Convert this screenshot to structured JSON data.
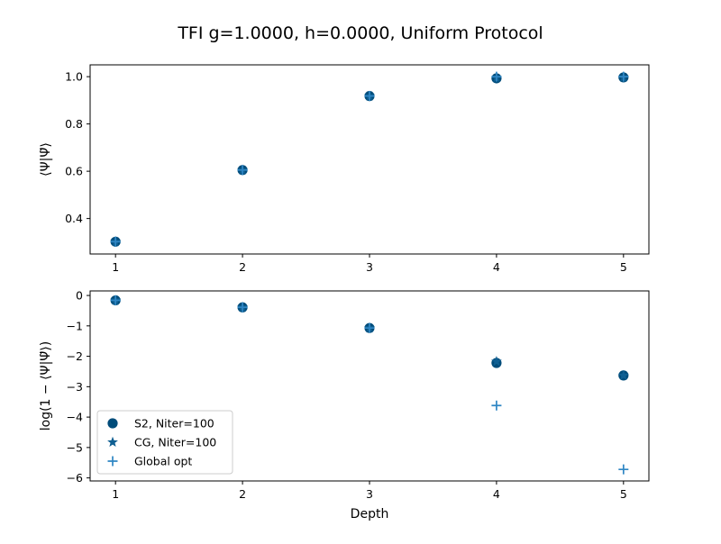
{
  "figure": {
    "title": "TFI g=1.0000, h=0.0000, Uniform Protocol"
  },
  "chart_data": [
    {
      "type": "scatter",
      "title": "",
      "xlabel": "",
      "ylabel": "⟨Ψ|Ψ̃⟩",
      "xlim": [
        0.8,
        5.2
      ],
      "ylim": [
        0.25,
        1.05
      ],
      "xticks": [
        1,
        2,
        3,
        4,
        5
      ],
      "yticks": [
        0.4,
        0.6,
        0.8,
        1.0
      ],
      "ytick_labels": [
        "0.4",
        "0.6",
        "0.8",
        "1.0"
      ],
      "series": [
        {
          "name": "S2, Niter=100",
          "marker": "circle",
          "color": "#004c7a",
          "x": [
            1,
            2,
            3,
            4,
            5
          ],
          "y": [
            0.302,
            0.605,
            0.918,
            0.993,
            0.997
          ]
        },
        {
          "name": "CG, Niter=100",
          "marker": "star",
          "color": "#0f5f92",
          "x": [
            1,
            2,
            3,
            4,
            5
          ],
          "y": [
            0.302,
            0.605,
            0.918,
            0.995,
            0.997
          ]
        },
        {
          "name": "Global opt",
          "marker": "plus",
          "color": "#2f86c4",
          "x": [
            1,
            2,
            3,
            4,
            5
          ],
          "y": [
            0.302,
            0.605,
            0.918,
            1.0,
            1.0
          ]
        }
      ]
    },
    {
      "type": "scatter",
      "title": "",
      "xlabel": "Depth",
      "ylabel": "log(1 − ⟨Ψ|Ψ̃⟩)",
      "xlim": [
        0.8,
        5.2
      ],
      "ylim": [
        -6.1,
        0.15
      ],
      "xticks": [
        1,
        2,
        3,
        4,
        5
      ],
      "yticks": [
        0,
        -1,
        -2,
        -3,
        -4,
        -5,
        -6
      ],
      "ytick_labels": [
        "0",
        "−1",
        "−2",
        "−3",
        "−4",
        "−5",
        "−6"
      ],
      "legend_position": "lower-left",
      "series": [
        {
          "name": "S2, Niter=100",
          "marker": "circle",
          "color": "#004c7a",
          "x": [
            1,
            2,
            3,
            4,
            5
          ],
          "y": [
            -0.16,
            -0.39,
            -1.07,
            -2.22,
            -2.63
          ]
        },
        {
          "name": "CG, Niter=100",
          "marker": "star",
          "color": "#0f5f92",
          "x": [
            1,
            2,
            3,
            4,
            5
          ],
          "y": [
            -0.16,
            -0.39,
            -1.07,
            -2.17,
            -2.63
          ]
        },
        {
          "name": "Global opt",
          "marker": "plus",
          "color": "#2f86c4",
          "x": [
            1,
            2,
            3,
            4,
            5
          ],
          "y": [
            -0.16,
            -0.39,
            -1.07,
            -3.62,
            -5.72
          ]
        }
      ]
    }
  ]
}
